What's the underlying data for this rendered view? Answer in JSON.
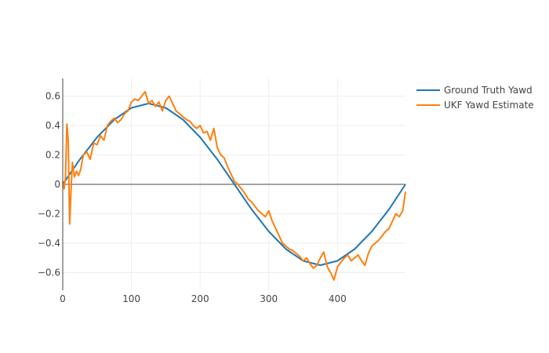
{
  "chart_data": {
    "type": "line",
    "title": "",
    "xlabel": "",
    "ylabel": "",
    "xlim": [
      0,
      499
    ],
    "ylim": [
      -0.72,
      0.72
    ],
    "x_ticks": [
      0,
      100,
      200,
      300,
      400
    ],
    "x_tick_labels": [
      "0",
      "100",
      "200",
      "300",
      "400"
    ],
    "y_ticks": [
      -0.6,
      -0.4,
      -0.2,
      0,
      0.2,
      0.4,
      0.6
    ],
    "y_tick_labels": [
      "−0.6",
      "−0.4",
      "−0.2",
      "0",
      "0.2",
      "0.4",
      "0.6"
    ],
    "grid": true,
    "legend_position": "top-right",
    "series": [
      {
        "name": "Ground Truth Yawd",
        "color": "#1f77b4",
        "x": [
          0,
          25,
          50,
          75,
          100,
          125,
          150,
          175,
          200,
          225,
          250,
          275,
          300,
          325,
          350,
          375,
          400,
          425,
          450,
          475,
          499
        ],
        "y": [
          0.0,
          0.17,
          0.32,
          0.44,
          0.52,
          0.55,
          0.52,
          0.44,
          0.32,
          0.17,
          0.0,
          -0.17,
          -0.32,
          -0.44,
          -0.52,
          -0.55,
          -0.52,
          -0.44,
          -0.32,
          -0.17,
          0.0
        ]
      },
      {
        "name": "UKF Yawd Estimate",
        "color": "#ff7f0e",
        "x": [
          0,
          2,
          4,
          6,
          8,
          10,
          12,
          14,
          17,
          20,
          23,
          26,
          30,
          35,
          40,
          45,
          50,
          55,
          60,
          65,
          70,
          75,
          80,
          85,
          90,
          95,
          100,
          105,
          110,
          115,
          120,
          125,
          130,
          135,
          140,
          145,
          150,
          155,
          160,
          165,
          170,
          175,
          180,
          185,
          190,
          195,
          200,
          205,
          210,
          215,
          220,
          225,
          230,
          235,
          240,
          245,
          250,
          255,
          260,
          265,
          270,
          275,
          280,
          285,
          290,
          295,
          300,
          305,
          310,
          315,
          320,
          325,
          330,
          335,
          340,
          345,
          350,
          355,
          360,
          365,
          370,
          375,
          380,
          385,
          390,
          395,
          400,
          405,
          410,
          415,
          420,
          425,
          430,
          435,
          440,
          445,
          450,
          455,
          460,
          465,
          470,
          475,
          480,
          485,
          490,
          495,
          499
        ],
        "y": [
          0.02,
          -0.03,
          0.05,
          0.41,
          0.3,
          -0.27,
          -0.05,
          0.15,
          0.05,
          0.09,
          0.06,
          0.1,
          0.2,
          0.22,
          0.17,
          0.28,
          0.27,
          0.33,
          0.3,
          0.4,
          0.43,
          0.45,
          0.42,
          0.44,
          0.48,
          0.5,
          0.56,
          0.58,
          0.57,
          0.6,
          0.63,
          0.55,
          0.57,
          0.53,
          0.56,
          0.5,
          0.57,
          0.6,
          0.55,
          0.5,
          0.48,
          0.46,
          0.44,
          0.43,
          0.4,
          0.38,
          0.4,
          0.35,
          0.36,
          0.3,
          0.38,
          0.25,
          0.2,
          0.18,
          0.12,
          0.07,
          0.02,
          0.0,
          -0.03,
          -0.06,
          -0.1,
          -0.12,
          -0.15,
          -0.18,
          -0.2,
          -0.22,
          -0.18,
          -0.25,
          -0.3,
          -0.35,
          -0.4,
          -0.42,
          -0.44,
          -0.45,
          -0.47,
          -0.49,
          -0.52,
          -0.5,
          -0.54,
          -0.57,
          -0.55,
          -0.5,
          -0.46,
          -0.56,
          -0.6,
          -0.65,
          -0.56,
          -0.53,
          -0.5,
          -0.48,
          -0.52,
          -0.5,
          -0.48,
          -0.52,
          -0.55,
          -0.47,
          -0.42,
          -0.4,
          -0.38,
          -0.35,
          -0.32,
          -0.3,
          -0.25,
          -0.2,
          -0.22,
          -0.18,
          -0.05
        ]
      }
    ]
  }
}
